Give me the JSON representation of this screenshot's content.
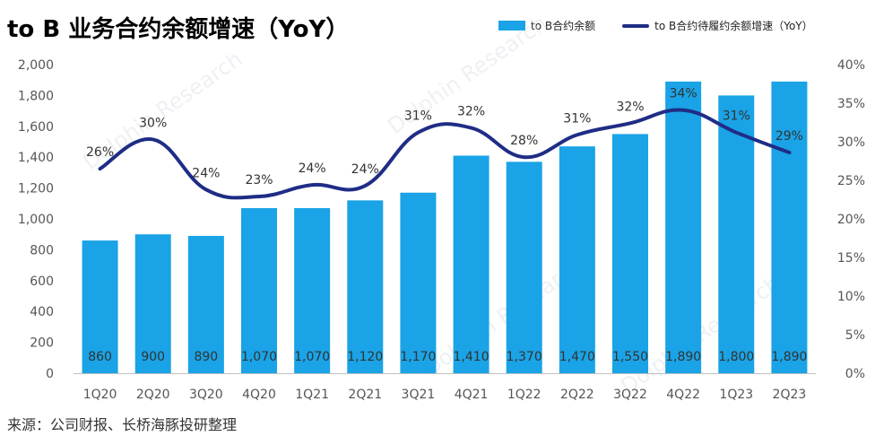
{
  "title": "to B 业务合约余额增速（YoY）",
  "source": "来源：公司财报、长桥海豚投研整理",
  "watermark": "Dolphin Research",
  "colors": {
    "bar": "#1aa3e6",
    "line": "#1f2d86"
  },
  "chart_data": {
    "type": "bar+line",
    "categories": [
      "1Q20",
      "2Q20",
      "3Q20",
      "4Q20",
      "1Q21",
      "2Q21",
      "3Q21",
      "4Q21",
      "1Q22",
      "2Q22",
      "3Q22",
      "4Q22",
      "1Q23",
      "2Q23"
    ],
    "series": [
      {
        "name": "to B合约余额",
        "type": "bar",
        "axis": "left",
        "values": [
          860,
          900,
          890,
          1070,
          1070,
          1120,
          1170,
          1410,
          1370,
          1470,
          1550,
          1890,
          1800,
          1890
        ],
        "labels": [
          "860",
          "900",
          "890",
          "1,070",
          "1,070",
          "1,120",
          "1,170",
          "1,410",
          "1,370",
          "1,470",
          "1,550",
          "1,890",
          "1,800",
          "1,890"
        ]
      },
      {
        "name": "to B合约待履约余额增速（YoY）",
        "type": "line",
        "axis": "right",
        "values": [
          26.5,
          30.3,
          23.8,
          22.9,
          24.4,
          24.3,
          31.2,
          31.8,
          28.0,
          30.9,
          32.4,
          34.1,
          31.2,
          28.6
        ],
        "labels": [
          "26%",
          "30%",
          "24%",
          "23%",
          "24%",
          "24%",
          "31%",
          "32%",
          "28%",
          "31%",
          "32%",
          "34%",
          "31%",
          "29%"
        ]
      }
    ],
    "y_left": {
      "min": 0,
      "max": 2000,
      "ticks": [
        "0",
        "200",
        "400",
        "600",
        "800",
        "1,000",
        "1,200",
        "1,400",
        "1,600",
        "1,800",
        "2,000"
      ]
    },
    "y_right": {
      "min": 0,
      "max": 40,
      "ticks": [
        "0%",
        "5%",
        "10%",
        "15%",
        "20%",
        "25%",
        "30%",
        "35%",
        "40%"
      ]
    },
    "grid": false,
    "legend_position": "top-right"
  }
}
